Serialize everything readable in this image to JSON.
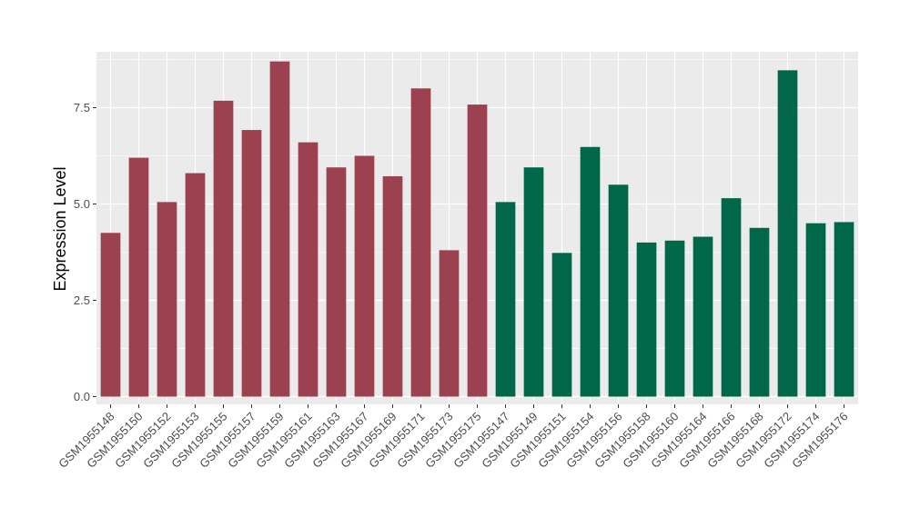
{
  "chart_data": {
    "type": "bar",
    "title": "",
    "xlabel": "",
    "ylabel": "Expression Level",
    "ylim": [
      -0.2,
      8.95
    ],
    "yticks": [
      0.0,
      2.5,
      5.0,
      7.5
    ],
    "ytick_labels": [
      "0.0",
      "2.5",
      "5.0",
      "7.5"
    ],
    "grid": true,
    "panel_background": "#ebebeb",
    "categories": [
      "GSM1955148",
      "GSM1955150",
      "GSM1955152",
      "GSM1955153",
      "GSM1955155",
      "GSM1955157",
      "GSM1955159",
      "GSM1955161",
      "GSM1955163",
      "GSM1955167",
      "GSM1955169",
      "GSM1955171",
      "GSM1955173",
      "GSM1955175",
      "GSM1955147",
      "GSM1955149",
      "GSM1955151",
      "GSM1955154",
      "GSM1955156",
      "GSM1955158",
      "GSM1955160",
      "GSM1955164",
      "GSM1955166",
      "GSM1955168",
      "GSM1955172",
      "GSM1955174",
      "GSM1955176"
    ],
    "values": [
      4.25,
      6.2,
      5.05,
      5.8,
      7.68,
      6.92,
      8.7,
      6.6,
      5.95,
      6.25,
      5.72,
      8.0,
      3.8,
      7.58,
      5.05,
      5.95,
      3.73,
      6.48,
      5.5,
      4.0,
      4.05,
      4.15,
      5.15,
      4.38,
      8.47,
      4.5,
      4.53
    ],
    "bar_colors": [
      "#9b4150",
      "#9b4150",
      "#9b4150",
      "#9b4150",
      "#9b4150",
      "#9b4150",
      "#9b4150",
      "#9b4150",
      "#9b4150",
      "#9b4150",
      "#9b4150",
      "#9b4150",
      "#9b4150",
      "#9b4150",
      "#006848",
      "#006848",
      "#006848",
      "#006848",
      "#006848",
      "#006848",
      "#006848",
      "#006848",
      "#006848",
      "#006848",
      "#006848",
      "#006848",
      "#006848"
    ]
  }
}
